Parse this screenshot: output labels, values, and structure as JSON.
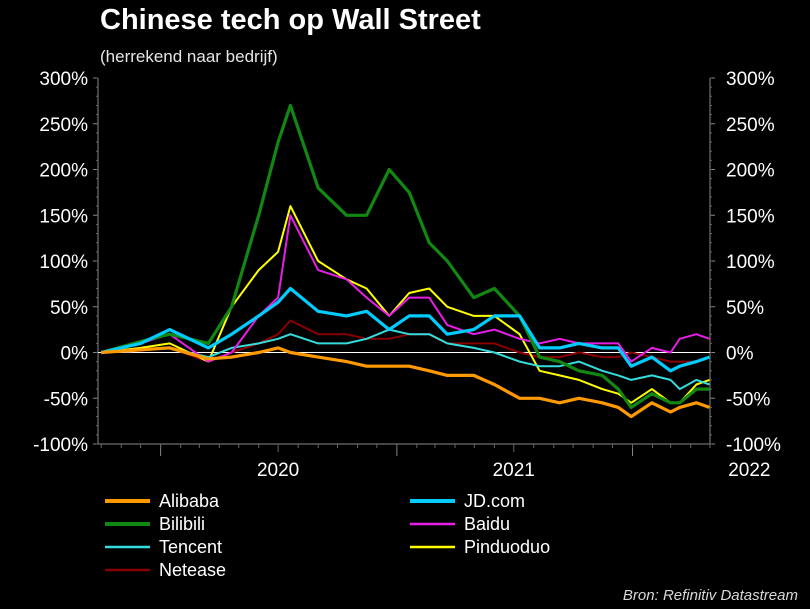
{
  "title": "Chinese tech op Wall Street",
  "subtitle": "(herrekend naar bedrijf)",
  "source": "Bron: Refinitiv Datastream",
  "chart_data": {
    "type": "line",
    "title": "Chinese tech op Wall Street",
    "subtitle": "(herrekend naar bedrijf)",
    "y_unit": "%",
    "ylim": [
      -100,
      300
    ],
    "yticks": [
      300,
      250,
      200,
      150,
      100,
      50,
      0,
      -50,
      -100
    ],
    "ytick_labels": [
      "300%",
      "250%",
      "200%",
      "150%",
      "100%",
      "50%",
      "0%",
      "-50%",
      "-100%"
    ],
    "xlim": [
      "2019-09-26",
      "2022-05-01"
    ],
    "xticks": [
      "2020",
      "2021",
      "2022"
    ],
    "x_dates": [
      "2019-10-01",
      "2019-12-01",
      "2020-01-15",
      "2020-03-15",
      "2020-04-20",
      "2020-06-01",
      "2020-07-01",
      "2020-07-20",
      "2020-09-01",
      "2020-10-15",
      "2020-11-15",
      "2020-12-20",
      "2021-01-20",
      "2021-02-20",
      "2021-03-20",
      "2021-04-30",
      "2021-06-01",
      "2021-07-10",
      "2021-08-10",
      "2021-09-10",
      "2021-10-10",
      "2021-11-15",
      "2021-12-10",
      "2021-12-30",
      "2022-01-31",
      "2022-03-01",
      "2022-03-15",
      "2022-04-10",
      "2022-04-30"
    ],
    "grid": false,
    "legend_position": "bottom",
    "legend_columns": 2,
    "series": [
      {
        "name": "Alibaba",
        "color": "#ff9900",
        "width": 3.2,
        "values": [
          0,
          3,
          5,
          -7,
          -5,
          0,
          5,
          0,
          -5,
          -10,
          -15,
          -15,
          -15,
          -20,
          -25,
          -25,
          -35,
          -50,
          -50,
          -55,
          -50,
          -55,
          -60,
          -70,
          -55,
          -65,
          -60,
          -55,
          -60
        ]
      },
      {
        "name": "JD.com",
        "color": "#00ccff",
        "width": 3.2,
        "values": [
          0,
          10,
          25,
          5,
          20,
          40,
          55,
          70,
          45,
          40,
          45,
          25,
          40,
          40,
          20,
          25,
          40,
          40,
          5,
          5,
          10,
          5,
          5,
          -15,
          -5,
          -20,
          -15,
          -10,
          -5
        ]
      },
      {
        "name": "Bilibili",
        "color": "#118811",
        "width": 3.2,
        "values": [
          0,
          12,
          20,
          10,
          50,
          150,
          230,
          270,
          180,
          150,
          150,
          200,
          175,
          120,
          100,
          60,
          70,
          40,
          -5,
          -10,
          -20,
          -25,
          -40,
          -60,
          -45,
          -55,
          -55,
          -40,
          -40
        ]
      },
      {
        "name": "Baidu",
        "color": "#e61ee6",
        "width": 2,
        "values": [
          0,
          10,
          20,
          -10,
          0,
          40,
          60,
          150,
          90,
          80,
          60,
          40,
          60,
          60,
          30,
          20,
          25,
          15,
          10,
          15,
          10,
          10,
          10,
          -10,
          5,
          0,
          15,
          20,
          15
        ]
      },
      {
        "name": "Tencent",
        "color": "#33dddd",
        "width": 2,
        "values": [
          0,
          3,
          5,
          -5,
          5,
          10,
          15,
          20,
          10,
          10,
          15,
          25,
          20,
          20,
          10,
          5,
          0,
          -10,
          -15,
          -15,
          -10,
          -20,
          -25,
          -30,
          -25,
          -30,
          -40,
          -30,
          -35
        ]
      },
      {
        "name": "Pinduoduo",
        "color": "#ffff00",
        "width": 2,
        "values": [
          0,
          5,
          10,
          -10,
          50,
          90,
          110,
          160,
          100,
          80,
          70,
          40,
          65,
          70,
          50,
          40,
          40,
          20,
          -20,
          -25,
          -30,
          -40,
          -45,
          -55,
          -40,
          -55,
          -55,
          -35,
          -30
        ]
      },
      {
        "name": "Netease",
        "color": "#880000",
        "width": 2,
        "values": [
          0,
          2,
          5,
          -10,
          0,
          10,
          20,
          35,
          20,
          20,
          15,
          15,
          20,
          20,
          10,
          10,
          10,
          0,
          -5,
          -5,
          0,
          -5,
          -5,
          0,
          -5,
          -10,
          -10,
          -10,
          -5
        ]
      }
    ]
  }
}
